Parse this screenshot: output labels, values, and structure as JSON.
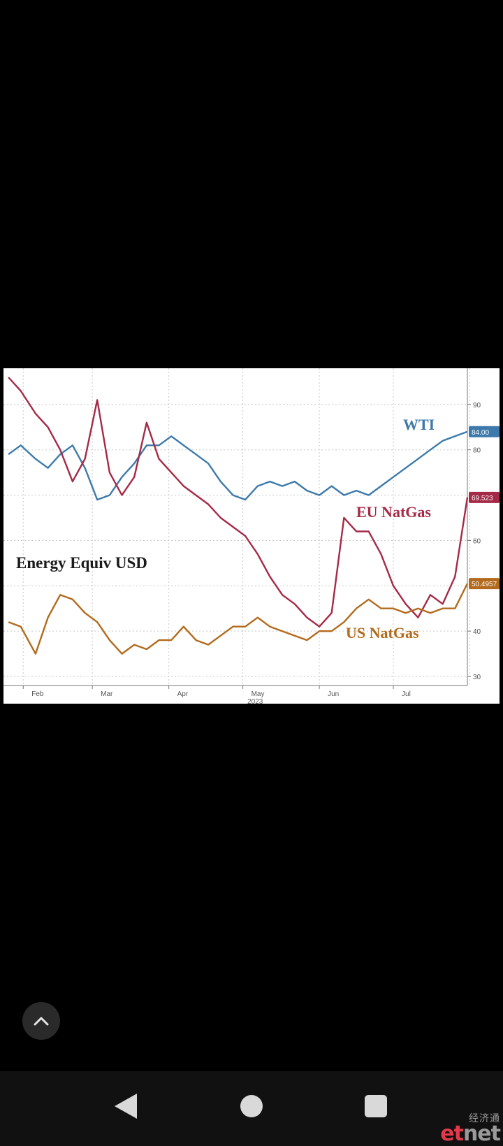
{
  "chart_data": {
    "type": "line",
    "title": "Energy Equiv USD",
    "xlabel": "2023",
    "x_tick_labels": [
      "Feb",
      "Mar",
      "Apr",
      "May",
      "Jun",
      "Jul"
    ],
    "y_tick_labels": [
      "90",
      "80",
      "60",
      "40",
      "30"
    ],
    "ylim": [
      28,
      98
    ],
    "grid": true,
    "x": [
      "2023-01-26",
      "2023-01-31",
      "2023-02-06",
      "2023-02-11",
      "2023-02-16",
      "2023-02-21",
      "2023-02-26",
      "2023-03-03",
      "2023-03-08",
      "2023-03-13",
      "2023-03-18",
      "2023-03-23",
      "2023-03-28",
      "2023-04-02",
      "2023-04-07",
      "2023-04-12",
      "2023-04-17",
      "2023-04-22",
      "2023-04-27",
      "2023-05-02",
      "2023-05-07",
      "2023-05-12",
      "2023-05-17",
      "2023-05-22",
      "2023-05-27",
      "2023-06-01",
      "2023-06-06",
      "2023-06-11",
      "2023-06-16",
      "2023-06-21",
      "2023-06-26",
      "2023-07-01",
      "2023-07-06",
      "2023-07-11",
      "2023-07-16",
      "2023-07-21",
      "2023-07-26",
      "2023-07-31"
    ],
    "series": [
      {
        "name": "WTI",
        "color": "#3d7aab",
        "last_value_label": "84.00",
        "values": [
          79,
          81,
          78,
          76,
          79,
          81,
          76,
          69,
          70,
          74,
          77,
          81,
          81,
          83,
          81,
          79,
          77,
          73,
          70,
          69,
          72,
          73,
          72,
          73,
          71,
          70,
          72,
          70,
          71,
          70,
          72,
          74,
          76,
          78,
          80,
          82,
          83,
          84
        ]
      },
      {
        "name": "EU NatGas",
        "color": "#a52a47",
        "last_value_label": "69.523",
        "values": [
          96,
          93,
          88,
          85,
          80,
          73,
          78,
          91,
          75,
          70,
          74,
          86,
          78,
          75,
          72,
          70,
          68,
          65,
          63,
          61,
          57,
          52,
          48,
          46,
          43,
          41,
          44,
          65,
          62,
          62,
          57,
          50,
          46,
          43,
          48,
          46,
          52,
          69.5
        ]
      },
      {
        "name": "US NatGas",
        "color": "#b36a1c",
        "last_value_label": "50.4957",
        "values": [
          42,
          41,
          35,
          43,
          48,
          47,
          44,
          42,
          38,
          35,
          37,
          36,
          38,
          38,
          41,
          38,
          37,
          39,
          41,
          41,
          43,
          41,
          40,
          39,
          38,
          40,
          40,
          42,
          45,
          47,
          45,
          45,
          44,
          45,
          44,
          45,
          45,
          50.5
        ]
      }
    ]
  },
  "nav": {
    "scroll_top_icon": "chevron-up-icon",
    "back_icon": "back-triangle-icon",
    "home_icon": "home-circle-icon",
    "recents_icon": "recents-square-icon"
  },
  "watermark": {
    "top": "经济通",
    "brand_et": "et",
    "brand_net": "net"
  }
}
